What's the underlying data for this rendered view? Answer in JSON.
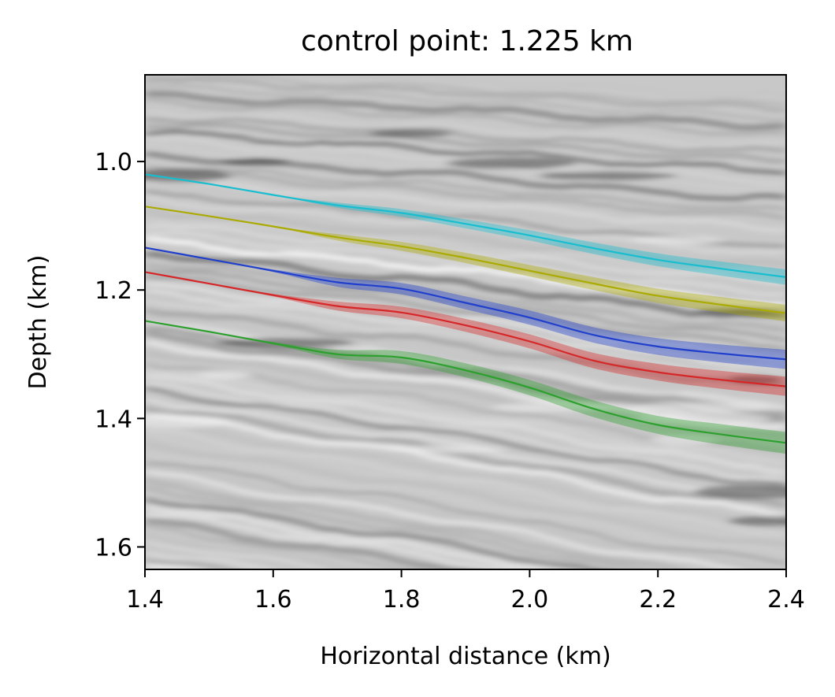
{
  "chart_data": {
    "type": "line",
    "title": "control point: 1.225 km",
    "xlabel": "Horizontal distance (km)",
    "ylabel": "Depth (km)",
    "xlim": [
      1.4,
      2.4
    ],
    "ylim": [
      1.635,
      0.865
    ],
    "y_inverted": true,
    "xticks": [
      "1.4",
      "1.6",
      "1.8",
      "2.0",
      "2.2",
      "2.4"
    ],
    "yticks": [
      "1.0",
      "1.2",
      "1.4",
      "1.6"
    ],
    "grid": false,
    "legend": "none",
    "background": "grayscale seismic depth image",
    "series": [
      {
        "color": "#17becf",
        "x": [
          1.4,
          1.5,
          1.6,
          1.7,
          1.8,
          1.9,
          2.0,
          2.1,
          2.2,
          2.3,
          2.4
        ],
        "y": [
          1.02,
          1.035,
          1.052,
          1.068,
          1.08,
          1.097,
          1.115,
          1.135,
          1.153,
          1.167,
          1.18
        ],
        "band": [
          0,
          0,
          0,
          0.004,
          0.006,
          0.007,
          0.008,
          0.009,
          0.01,
          0.011,
          0.012
        ]
      },
      {
        "color": "#aaaa00",
        "x": [
          1.4,
          1.5,
          1.6,
          1.7,
          1.8,
          1.9,
          2.0,
          2.1,
          2.2,
          2.3,
          2.4
        ],
        "y": [
          1.07,
          1.085,
          1.101,
          1.118,
          1.132,
          1.15,
          1.17,
          1.19,
          1.209,
          1.223,
          1.236
        ],
        "band": [
          0,
          0,
          0,
          0.005,
          0.007,
          0.008,
          0.009,
          0.01,
          0.011,
          0.012,
          0.013
        ]
      },
      {
        "color": "#1f3fcc",
        "x": [
          1.4,
          1.5,
          1.6,
          1.7,
          1.8,
          1.9,
          2.0,
          2.1,
          2.2,
          2.3,
          2.4
        ],
        "y": [
          1.134,
          1.152,
          1.17,
          1.188,
          1.198,
          1.22,
          1.243,
          1.27,
          1.288,
          1.299,
          1.308
        ],
        "band": [
          0,
          0,
          0.002,
          0.007,
          0.009,
          0.01,
          0.011,
          0.012,
          0.013,
          0.014,
          0.015
        ]
      },
      {
        "color": "#d62728",
        "x": [
          1.4,
          1.5,
          1.6,
          1.7,
          1.8,
          1.9,
          2.0,
          2.1,
          2.2,
          2.3,
          2.4
        ],
        "y": [
          1.172,
          1.19,
          1.208,
          1.225,
          1.235,
          1.255,
          1.28,
          1.31,
          1.328,
          1.34,
          1.35
        ],
        "band": [
          0,
          0,
          0.002,
          0.007,
          0.009,
          0.01,
          0.011,
          0.012,
          0.013,
          0.014,
          0.015
        ]
      },
      {
        "color": "#2ca02c",
        "x": [
          1.4,
          1.5,
          1.6,
          1.7,
          1.8,
          1.9,
          2.0,
          2.1,
          2.2,
          2.3,
          2.4
        ],
        "y": [
          1.248,
          1.265,
          1.283,
          1.3,
          1.305,
          1.325,
          1.352,
          1.385,
          1.41,
          1.425,
          1.438
        ],
        "band": [
          0,
          0,
          0.002,
          0.007,
          0.01,
          0.011,
          0.012,
          0.013,
          0.014,
          0.016,
          0.017
        ]
      }
    ]
  }
}
